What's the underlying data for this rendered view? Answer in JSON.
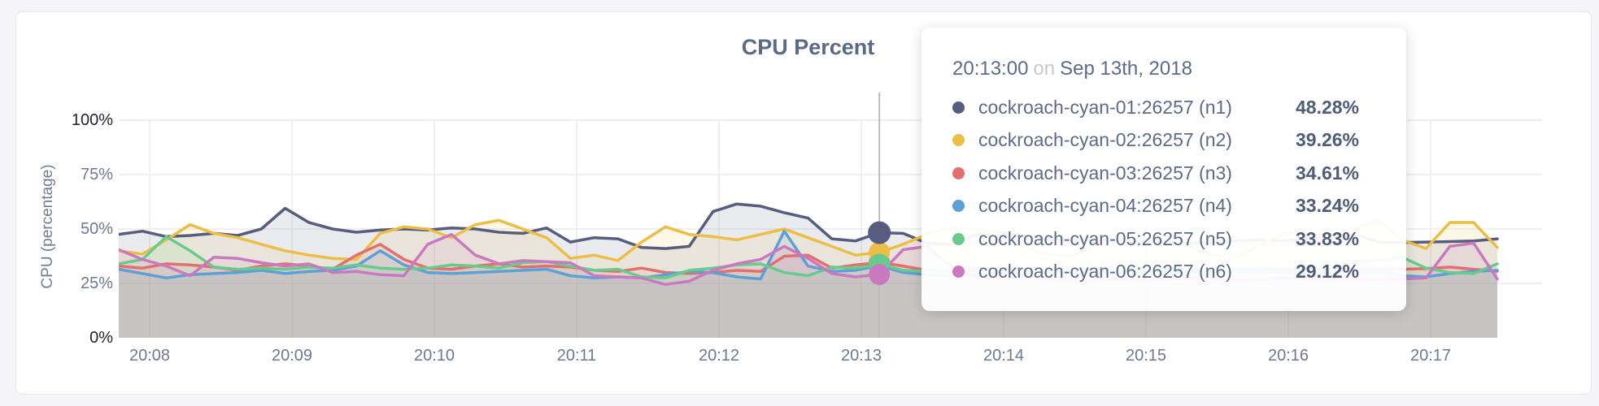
{
  "page": {
    "background_color": "#f5f5f7"
  },
  "chart": {
    "title": "CPU Percent",
    "y_axis_title": "CPU (percentage)"
  },
  "tooltip": {
    "time": "20:13:00",
    "conjunction": "on",
    "date": "Sep 13th, 2018",
    "values": [
      "48.28%",
      "39.26%",
      "34.61%",
      "33.24%",
      "33.83%",
      "29.12%"
    ]
  },
  "chart_data": {
    "type": "area",
    "title": "CPU Percent",
    "ylabel": "CPU (percentage)",
    "ylim": [
      0,
      100
    ],
    "grid": true,
    "y_ticks": [
      {
        "value": 100,
        "label": "100%"
      },
      {
        "value": 75,
        "label": "75%"
      },
      {
        "value": 50,
        "label": "50%"
      },
      {
        "value": 25,
        "label": "25%"
      },
      {
        "value": 0,
        "label": "0%"
      }
    ],
    "x_ticks": [
      "20:08",
      "20:09",
      "20:10",
      "20:11",
      "20:12",
      "20:13",
      "20:14",
      "20:15",
      "20:16",
      "20:17"
    ],
    "sample_interval_seconds": 10,
    "hover": {
      "index": 32,
      "time": "20:13:00",
      "date": "Sep 13th, 2018"
    },
    "series": [
      {
        "name": "cockroach-cyan-01:26257 (n1)",
        "color": "#565d7f",
        "values": [
          47.5,
          49,
          46.5,
          47,
          48,
          47,
          50,
          59.5,
          53,
          50,
          48.5,
          49.5,
          50,
          49.5,
          50.5,
          50,
          48.5,
          48,
          50.5,
          44,
          46,
          45.5,
          41.5,
          41,
          42,
          58,
          61.5,
          60.5,
          57.5,
          55,
          45.5,
          44.5,
          48.28,
          48,
          43.5,
          43,
          47,
          48.5,
          47,
          45.5,
          44.5,
          45,
          44.5,
          44,
          44.5,
          43.5,
          44,
          44.5,
          45,
          44.5,
          45.5,
          46.5,
          47.5,
          44,
          43.8,
          44,
          44.2,
          44.5,
          45.5
        ]
      },
      {
        "name": "cockroach-cyan-02:26257 (n2)",
        "color": "#ecbe45",
        "values": [
          40,
          38.5,
          45,
          52,
          48,
          46,
          43,
          40,
          38,
          36.5,
          36,
          48,
          51,
          50,
          46,
          52,
          54,
          50,
          46,
          36.5,
          38,
          35.5,
          44,
          51,
          47.5,
          46.5,
          45,
          47.5,
          50,
          46,
          42,
          38,
          39.26,
          43,
          47.5,
          50.5,
          50,
          48,
          42,
          38.5,
          37.5,
          42,
          47,
          48.5,
          47,
          42,
          38,
          37,
          42.5,
          48,
          49,
          46,
          50,
          54,
          45,
          41,
          53,
          53,
          41.5
        ]
      },
      {
        "name": "cockroach-cyan-03:26257 (n3)",
        "color": "#e46f6f",
        "values": [
          33,
          32,
          34,
          33.5,
          32.5,
          31,
          33,
          34,
          33,
          31.5,
          38,
          43,
          36,
          32,
          31.5,
          33,
          34,
          32.5,
          33,
          32.5,
          31,
          30.5,
          32,
          30,
          29.5,
          30,
          31,
          30.5,
          37.5,
          38,
          32,
          33.5,
          34.61,
          33,
          31,
          30.5,
          31,
          32,
          31.5,
          30.5,
          31,
          30.5,
          31.5,
          31,
          30.5,
          31,
          31.5,
          31,
          30.5,
          31,
          31.5,
          31,
          31.5,
          31.7,
          31.5,
          31.8,
          32.5,
          31.5,
          30.6
        ]
      },
      {
        "name": "cockroach-cyan-04:26257 (n4)",
        "color": "#5ba0d6",
        "values": [
          31.5,
          29.5,
          27.5,
          29,
          29.5,
          30,
          31,
          29.5,
          30.5,
          31,
          33,
          40,
          33.5,
          30,
          29.5,
          30,
          30.5,
          31,
          31.5,
          28.5,
          27.5,
          28,
          27.5,
          29,
          30.5,
          30,
          28,
          27,
          49,
          33,
          30.5,
          31,
          33.24,
          30,
          29,
          28.5,
          29,
          30,
          30.5,
          30,
          29.5,
          30,
          29.5,
          30,
          30.5,
          30,
          29.5,
          30,
          30.5,
          30,
          29.5,
          30,
          30.5,
          30.6,
          28.5,
          28,
          29.5,
          30.5,
          31
        ]
      },
      {
        "name": "cockroach-cyan-05:26257 (n5)",
        "color": "#68cb8c",
        "values": [
          34,
          36,
          46.5,
          40,
          32.5,
          31.5,
          32,
          31.5,
          32.5,
          32,
          33.5,
          32,
          31.5,
          32,
          33.5,
          33,
          32,
          34.5,
          35,
          33,
          31,
          31.5,
          28,
          27.5,
          31,
          32,
          33.5,
          34,
          30,
          28.5,
          32.5,
          32,
          33.83,
          31,
          30.5,
          31,
          32.5,
          31.5,
          30.5,
          31,
          31.5,
          32,
          31,
          31.5,
          32,
          31.5,
          31,
          31.5,
          32,
          31.5,
          32,
          31.5,
          35,
          35.5,
          37,
          32,
          30,
          29.5,
          34
        ]
      },
      {
        "name": "cockroach-cyan-06:26257 (n6)",
        "color": "#ca79c0",
        "values": [
          40.5,
          36,
          33,
          28.5,
          37,
          36.5,
          34.5,
          33,
          34,
          30,
          30.5,
          29,
          28.5,
          43,
          47.5,
          38,
          34,
          35.5,
          35,
          34.5,
          28.5,
          28,
          27.5,
          24.5,
          26,
          31,
          34,
          36,
          42,
          36.5,
          29.5,
          28,
          29.12,
          40.5,
          42,
          33,
          28,
          27.5,
          28,
          27,
          26,
          26.5,
          27,
          26.5,
          27,
          27.5,
          27,
          26.5,
          27,
          27.5,
          27,
          26.5,
          27,
          26.8,
          27,
          27.5,
          42,
          43.5,
          27
        ]
      }
    ]
  }
}
